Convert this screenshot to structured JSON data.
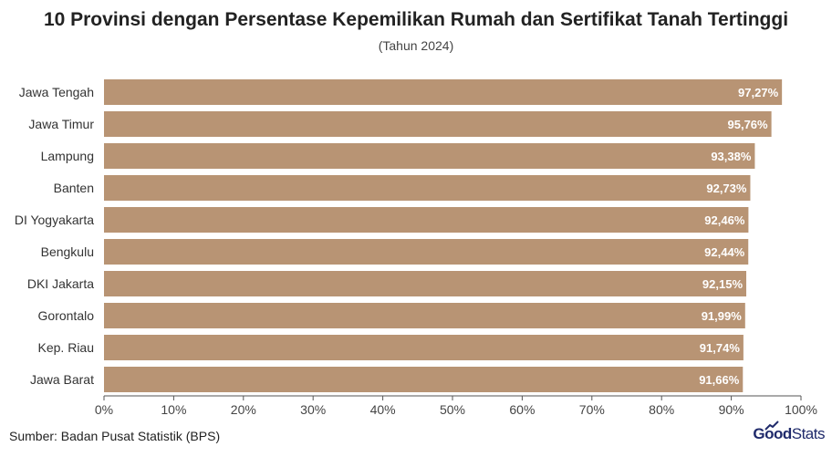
{
  "title": "10 Provinsi dengan Persentase Kepemilikan Rumah dan Sertifikat Tanah Tertinggi",
  "subtitle": "(Tahun 2024)",
  "source": "Sumber: Badan Pusat Statistik (BPS)",
  "logo": {
    "good": "Good",
    "stats": "Stats"
  },
  "colors": {
    "bar": "#b89474",
    "value_text": "#ffffff",
    "axis": "#555555"
  },
  "chart_data": {
    "type": "bar",
    "orientation": "horizontal",
    "title": "10 Provinsi dengan Persentase Kepemilikan Rumah dan Sertifikat Tanah Tertinggi",
    "subtitle": "(Tahun 2024)",
    "categories": [
      "Jawa Tengah",
      "Jawa Timur",
      "Lampung",
      "Banten",
      "DI Yogyakarta",
      "Bengkulu",
      "DKI Jakarta",
      "Gorontalo",
      "Kep. Riau",
      "Jawa Barat"
    ],
    "values": [
      97.27,
      95.76,
      93.38,
      92.73,
      92.46,
      92.44,
      92.15,
      91.99,
      91.74,
      91.66
    ],
    "value_labels": [
      "97,27%",
      "95,76%",
      "93,38%",
      "92,73%",
      "92,46%",
      "92,44%",
      "92,15%",
      "91,99%",
      "91,74%",
      "91,66%"
    ],
    "xlim": [
      0,
      100
    ],
    "xticks": [
      0,
      10,
      20,
      30,
      40,
      50,
      60,
      70,
      80,
      90,
      100
    ],
    "xtick_labels": [
      "0%",
      "10%",
      "20%",
      "30%",
      "40%",
      "50%",
      "60%",
      "70%",
      "80%",
      "90%",
      "100%"
    ],
    "xlabel": "",
    "ylabel": "",
    "grid": false,
    "legend": "none"
  }
}
